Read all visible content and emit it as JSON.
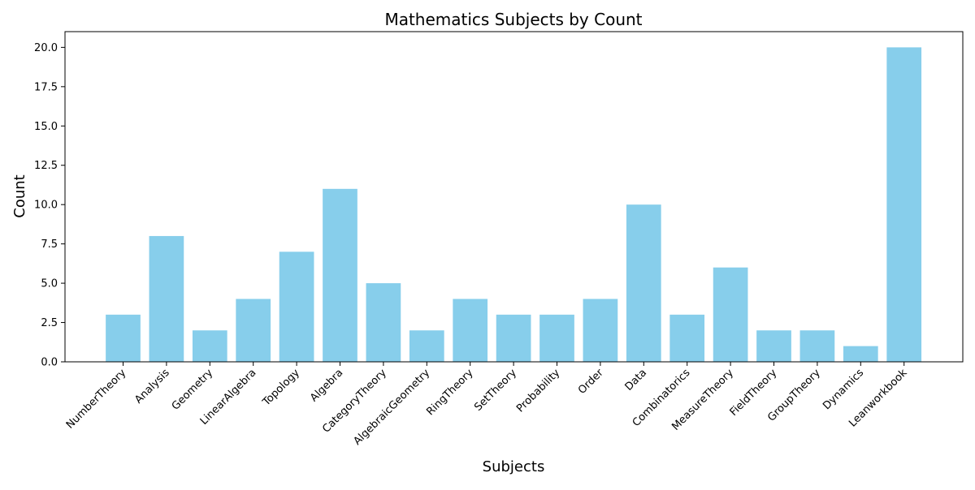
{
  "chart_data": {
    "type": "bar",
    "title": "Mathematics Subjects by Count",
    "xlabel": "Subjects",
    "ylabel": "Count",
    "categories": [
      "NumberTheory",
      "Analysis",
      "Geometry",
      "LinearAlgebra",
      "Topology",
      "Algebra",
      "CategoryTheory",
      "AlgebraicGeometry",
      "RingTheory",
      "SetTheory",
      "Probability",
      "Order",
      "Data",
      "Combinatorics",
      "MeasureTheory",
      "FieldTheory",
      "GroupTheory",
      "Dynamics",
      "Leanworkbook"
    ],
    "values": [
      3,
      8,
      2,
      4,
      7,
      11,
      5,
      2,
      4,
      3,
      3,
      4,
      10,
      3,
      6,
      2,
      2,
      1,
      20
    ],
    "ylim": [
      0,
      21
    ],
    "yticks": [
      "0.0",
      "2.5",
      "5.0",
      "7.5",
      "10.0",
      "12.5",
      "15.0",
      "17.5",
      "20.0"
    ],
    "bar_color": "#87ceeb",
    "grid": false,
    "legend": false
  }
}
